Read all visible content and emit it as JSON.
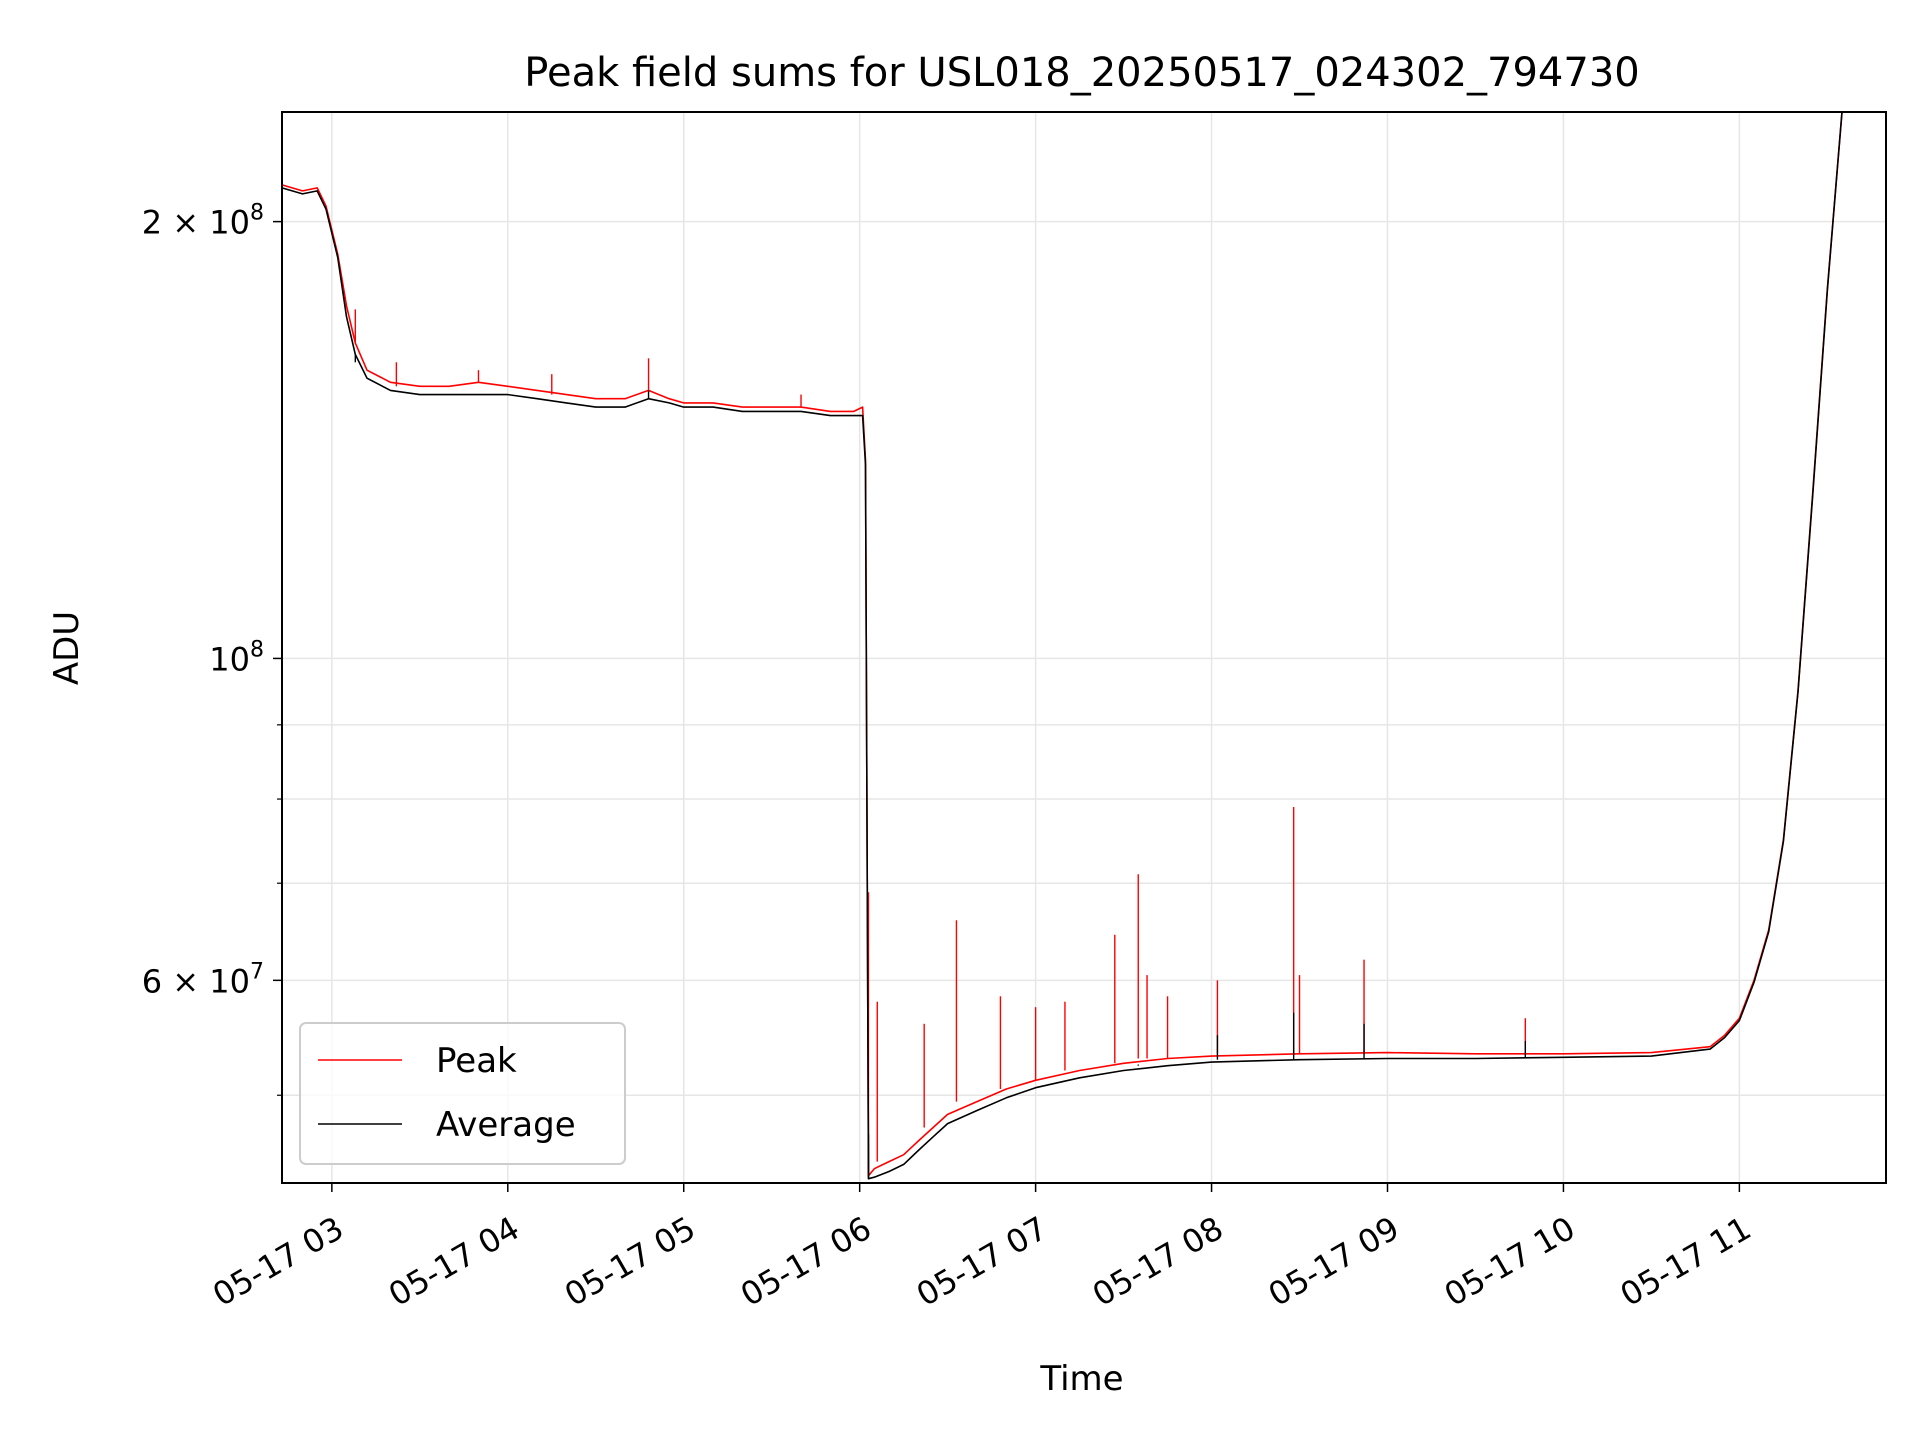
{
  "chart_data": {
    "type": "line",
    "title": "Peak field sums for USL018_20250517_024302_794730",
    "xlabel": "Time",
    "ylabel": "ADU",
    "yscale": "log",
    "ylim": [
      43500000,
      238000000
    ],
    "xlim": [
      "2025-05-17 02:43",
      "2025-05-17 11:50"
    ],
    "grid": true,
    "legend_position": "lower-left",
    "x_ticks": [
      {
        "at": "2025-05-17 03:00",
        "label": "05-17 03"
      },
      {
        "at": "2025-05-17 04:00",
        "label": "05-17 04"
      },
      {
        "at": "2025-05-17 05:00",
        "label": "05-17 05"
      },
      {
        "at": "2025-05-17 06:00",
        "label": "05-17 06"
      },
      {
        "at": "2025-05-17 07:00",
        "label": "05-17 07"
      },
      {
        "at": "2025-05-17 08:00",
        "label": "05-17 08"
      },
      {
        "at": "2025-05-17 09:00",
        "label": "05-17 09"
      },
      {
        "at": "2025-05-17 10:00",
        "label": "05-17 10"
      },
      {
        "at": "2025-05-17 11:00",
        "label": "05-17 11"
      }
    ],
    "y_major_ticks": [
      {
        "value": 100000000,
        "base": "10",
        "exp": "8"
      },
      {
        "value": 200000000,
        "base": "2 × 10",
        "exp": "8"
      },
      {
        "value": 60000000,
        "base": "6 × 10",
        "exp": "7"
      }
    ],
    "y_minor_ticks": [
      50000000,
      70000000,
      80000000,
      90000000
    ],
    "series": [
      {
        "name": "Peak",
        "color": "#ff0000",
        "x": [
          "2025-05-17 02:43",
          "2025-05-17 02:50",
          "2025-05-17 02:55",
          "2025-05-17 02:58",
          "2025-05-17 03:02",
          "2025-05-17 03:05",
          "2025-05-17 03:08",
          "2025-05-17 03:12",
          "2025-05-17 03:20",
          "2025-05-17 03:30",
          "2025-05-17 03:40",
          "2025-05-17 03:50",
          "2025-05-17 04:00",
          "2025-05-17 04:10",
          "2025-05-17 04:20",
          "2025-05-17 04:30",
          "2025-05-17 04:40",
          "2025-05-17 04:48",
          "2025-05-17 04:55",
          "2025-05-17 05:00",
          "2025-05-17 05:10",
          "2025-05-17 05:20",
          "2025-05-17 05:30",
          "2025-05-17 05:40",
          "2025-05-17 05:50",
          "2025-05-17 05:58",
          "2025-05-17 06:01",
          "2025-05-17 06:02",
          "2025-05-17 06:03",
          "2025-05-17 06:05",
          "2025-05-17 06:10",
          "2025-05-17 06:15",
          "2025-05-17 06:20",
          "2025-05-17 06:25",
          "2025-05-17 06:30",
          "2025-05-17 06:40",
          "2025-05-17 06:50",
          "2025-05-17 07:00",
          "2025-05-17 07:15",
          "2025-05-17 07:30",
          "2025-05-17 07:45",
          "2025-05-17 08:00",
          "2025-05-17 08:30",
          "2025-05-17 09:00",
          "2025-05-17 09:30",
          "2025-05-17 10:00",
          "2025-05-17 10:30",
          "2025-05-17 10:50",
          "2025-05-17 10:55",
          "2025-05-17 11:00",
          "2025-05-17 11:05",
          "2025-05-17 11:10",
          "2025-05-17 11:15",
          "2025-05-17 11:20",
          "2025-05-17 11:25",
          "2025-05-17 11:30",
          "2025-05-17 11:35"
        ],
        "y": [
          212000000,
          210000000,
          211000000,
          205000000,
          190000000,
          175000000,
          165000000,
          158000000,
          155000000,
          154000000,
          154000000,
          155000000,
          154000000,
          153000000,
          152000000,
          151000000,
          151000000,
          153000000,
          151000000,
          150000000,
          150000000,
          149000000,
          149000000,
          149000000,
          148000000,
          148000000,
          149000000,
          137000000,
          44000000,
          44500000,
          45000000,
          45500000,
          46500000,
          47500000,
          48500000,
          49500000,
          50500000,
          51200000,
          52000000,
          52600000,
          53000000,
          53200000,
          53400000,
          53500000,
          53400000,
          53400000,
          53500000,
          54000000,
          55000000,
          56500000,
          60000000,
          65000000,
          75000000,
          95000000,
          130000000,
          180000000,
          238000000
        ],
        "spikes": [
          {
            "x": "2025-05-17 03:08",
            "y": 174000000
          },
          {
            "x": "2025-05-17 03:22",
            "y": 160000000
          },
          {
            "x": "2025-05-17 03:50",
            "y": 158000000
          },
          {
            "x": "2025-05-17 04:15",
            "y": 157000000
          },
          {
            "x": "2025-05-17 04:48",
            "y": 161000000
          },
          {
            "x": "2025-05-17 05:40",
            "y": 152000000
          },
          {
            "x": "2025-05-17 06:03",
            "y": 69000000
          },
          {
            "x": "2025-05-17 06:06",
            "y": 58000000
          },
          {
            "x": "2025-05-17 06:22",
            "y": 56000000
          },
          {
            "x": "2025-05-17 06:33",
            "y": 66000000
          },
          {
            "x": "2025-05-17 06:48",
            "y": 58500000
          },
          {
            "x": "2025-05-17 07:00",
            "y": 57500000
          },
          {
            "x": "2025-05-17 07:10",
            "y": 58000000
          },
          {
            "x": "2025-05-17 07:27",
            "y": 64500000
          },
          {
            "x": "2025-05-17 07:35",
            "y": 71000000
          },
          {
            "x": "2025-05-17 07:38",
            "y": 60500000
          },
          {
            "x": "2025-05-17 07:45",
            "y": 58500000
          },
          {
            "x": "2025-05-17 08:02",
            "y": 60000000
          },
          {
            "x": "2025-05-17 08:28",
            "y": 79000000
          },
          {
            "x": "2025-05-17 08:30",
            "y": 60500000
          },
          {
            "x": "2025-05-17 08:52",
            "y": 62000000
          },
          {
            "x": "2025-05-17 09:47",
            "y": 56500000
          }
        ]
      },
      {
        "name": "Average",
        "color": "#000000",
        "x": [
          "2025-05-17 02:43",
          "2025-05-17 02:50",
          "2025-05-17 02:55",
          "2025-05-17 02:58",
          "2025-05-17 03:02",
          "2025-05-17 03:05",
          "2025-05-17 03:08",
          "2025-05-17 03:12",
          "2025-05-17 03:20",
          "2025-05-17 03:30",
          "2025-05-17 03:40",
          "2025-05-17 03:50",
          "2025-05-17 04:00",
          "2025-05-17 04:10",
          "2025-05-17 04:20",
          "2025-05-17 04:30",
          "2025-05-17 04:40",
          "2025-05-17 04:48",
          "2025-05-17 04:55",
          "2025-05-17 05:00",
          "2025-05-17 05:10",
          "2025-05-17 05:20",
          "2025-05-17 05:30",
          "2025-05-17 05:40",
          "2025-05-17 05:50",
          "2025-05-17 05:58",
          "2025-05-17 06:01",
          "2025-05-17 06:02",
          "2025-05-17 06:03",
          "2025-05-17 06:05",
          "2025-05-17 06:10",
          "2025-05-17 06:15",
          "2025-05-17 06:20",
          "2025-05-17 06:25",
          "2025-05-17 06:30",
          "2025-05-17 06:40",
          "2025-05-17 06:50",
          "2025-05-17 07:00",
          "2025-05-17 07:15",
          "2025-05-17 07:30",
          "2025-05-17 07:45",
          "2025-05-17 08:00",
          "2025-05-17 08:30",
          "2025-05-17 09:00",
          "2025-05-17 09:30",
          "2025-05-17 10:00",
          "2025-05-17 10:30",
          "2025-05-17 10:50",
          "2025-05-17 10:55",
          "2025-05-17 11:00",
          "2025-05-17 11:05",
          "2025-05-17 11:10",
          "2025-05-17 11:15",
          "2025-05-17 11:20",
          "2025-05-17 11:25",
          "2025-05-17 11:30",
          "2025-05-17 11:35"
        ],
        "y": [
          211000000,
          209000000,
          210000000,
          204000000,
          189000000,
          172000000,
          162000000,
          156000000,
          153000000,
          152000000,
          152000000,
          152000000,
          152000000,
          151000000,
          150000000,
          149000000,
          149000000,
          151000000,
          150000000,
          149000000,
          149000000,
          148000000,
          148000000,
          148000000,
          147000000,
          147000000,
          147000000,
          136000000,
          43800000,
          43900000,
          44300000,
          44800000,
          45800000,
          46800000,
          47800000,
          48800000,
          49800000,
          50600000,
          51400000,
          52000000,
          52400000,
          52700000,
          52900000,
          53000000,
          53000000,
          53100000,
          53200000,
          53800000,
          54800000,
          56300000,
          59800000,
          64800000,
          74800000,
          94800000,
          129500000,
          179500000,
          238000000
        ],
        "spikes": [
          {
            "x": "2025-05-17 03:08",
            "y": 160000000
          },
          {
            "x": "2025-05-17 04:48",
            "y": 153000000
          },
          {
            "x": "2025-05-17 06:03",
            "y": 47000000
          },
          {
            "x": "2025-05-17 07:35",
            "y": 52500000
          },
          {
            "x": "2025-05-17 08:02",
            "y": 55000000
          },
          {
            "x": "2025-05-17 08:28",
            "y": 57000000
          },
          {
            "x": "2025-05-17 08:52",
            "y": 56000000
          },
          {
            "x": "2025-05-17 09:47",
            "y": 54500000
          }
        ]
      }
    ]
  }
}
